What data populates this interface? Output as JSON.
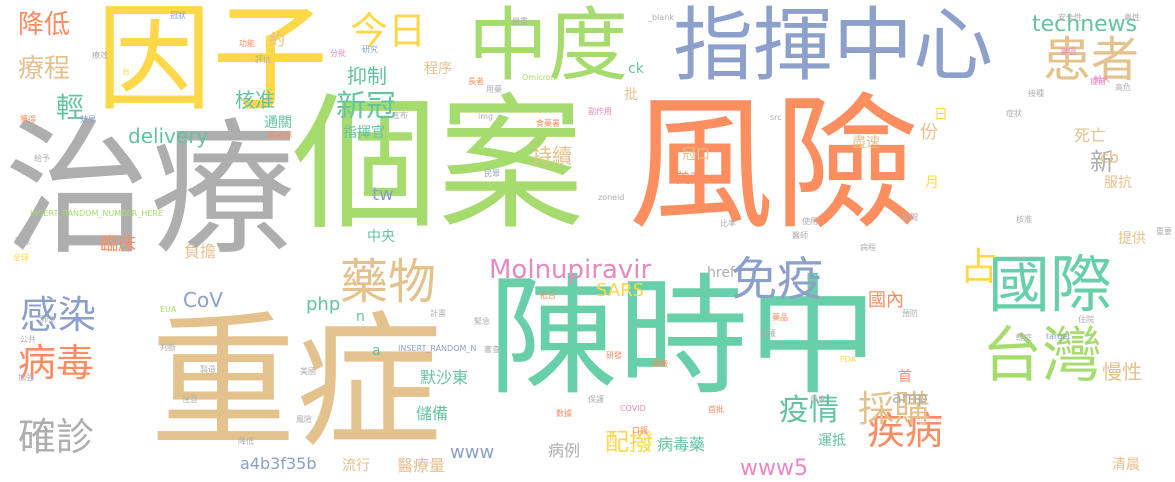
{
  "cloud": {
    "words": {
      "yinzi": "因子",
      "zhiliao": "治療",
      "zhongzheng": "重症",
      "gean": "個案",
      "fengxian": "風險",
      "chenshizhong": "陳時中",
      "zhongdu": "中度",
      "zhihuizhongxin": "指揮中心",
      "huanzhe": "患者",
      "guoji": "國際",
      "taiwan": "台灣",
      "jibing": "疾病",
      "yaowu": "藥物",
      "mianyi": "免疫",
      "caigou": "採購",
      "zhan": "占",
      "bingdu": "病毒",
      "ganran": "感染",
      "quezhen": "確診",
      "jiangdi": "降低",
      "liaocheng": "療程",
      "qing": "輕",
      "jinri": "今日",
      "xinguan": "新冠",
      "yizhi": "抑制",
      "chixu": "持續",
      "hezhun": "核准",
      "molnupiravir": "Molnupiravir",
      "www5": "www5",
      "peibo": "配撥",
      "yiqing": "疫情",
      "technews": "technews",
      "xin": "新",
      "mansheng": "慢性",
      "delivery": "delivery",
      "linchuang": "臨床",
      "cov": "CoV",
      "php": "php",
      "sars": "SARS",
      "guonei": "國內",
      "fuzhu": "負擔",
      "www": "www",
      "a4b3f35b": "a4b3f35b",
      "tw": "tw",
      "yue": "約",
      "chengxu": "程序",
      "siwang": "死亡",
      "fen": "份",
      "cb": "cb",
      "fukang": "服抗",
      "ri": "日",
      "ck": "ck",
      "pi": "批",
      "jinsu": "盡速",
      "guankou": "冠口",
      "meishang": "美商",
      "yue2": "月",
      "tonglou": "通關",
      "zhihuiguan": "指揮官",
      "zhongyang": "中央",
      "monshadong": "默沙東",
      "chubei": "儲備",
      "amp": "amp",
      "shou": "首",
      "href": "href",
      "n": "n",
      "a": "a",
      "binglizuan": "病例",
      "liuxing": "流行",
      "yiliaoliang": "醫療量",
      "bingduyao": "病毒藥",
      "yundi": "運抵",
      "qingchen": "清晨",
      "tigong": "提供",
      "blank": "_blank",
      "omicron": "Omicron",
      "insert1": "INSERT_RANDOM_NUMBER_HERE",
      "insert2": "INSERT_RANDOM_N",
      "eua": "EUA",
      "covid": "COVID",
      "fda": "FDA",
      "img": "img",
      "src": "src",
      "target": "target",
      "zoneid": "zoneid"
    },
    "small": [
      "冠狀",
      "療效",
      "功能",
      "研究",
      "分批",
      "台",
      "效果",
      "評估",
      "嚴重",
      "獲得",
      "長者",
      "用藥",
      "口服",
      "宣布",
      "副作用",
      "衛福部",
      "食藥署",
      "民眾",
      "疫苗",
      "接種",
      "安全性",
      "毒性",
      "事項",
      "輸入",
      "高危",
      "症狀",
      "住院",
      "醫師",
      "專家",
      "研發",
      "藥廠",
      "首批",
      "抵台",
      "國家",
      "全球",
      "比率",
      "計畫",
      "藥品",
      "緊急",
      "授權",
      "審查",
      "數據",
      "保護",
      "預防",
      "輕症",
      "病程",
      "使用",
      "核准",
      "期間",
      "重要",
      "加強",
      "肺炎",
      "公共",
      "給予",
      "注意",
      "判斷",
      "製造",
      "美國",
      "風險",
      "降低"
    ]
  }
}
